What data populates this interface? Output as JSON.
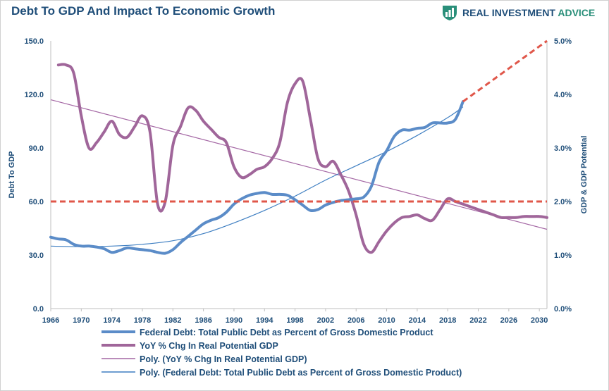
{
  "header": {
    "title": "Debt To GDP And Impact To Economic Growth",
    "brand_part1": "REAL INVESTMENT",
    "brand_part2": "ADVICE"
  },
  "chart_data": {
    "type": "line",
    "title": "Debt To GDP And Impact To Economic Growth",
    "ylabel": "Debt To GDP",
    "y2label": "GDP & GDP Potential",
    "xlim": [
      1966,
      2031
    ],
    "ylim": [
      0,
      150
    ],
    "y2lim": [
      0,
      5.0
    ],
    "x_ticks": [
      "1966",
      "1970",
      "1974",
      "1978",
      "1982",
      "1986",
      "1990",
      "1994",
      "1998",
      "2002",
      "2006",
      "2010",
      "2014",
      "2018",
      "2022",
      "2026",
      "2030"
    ],
    "y_ticks": [
      "0.0",
      "30.0",
      "60.0",
      "90.0",
      "120.0",
      "150.0"
    ],
    "y2_ticks": [
      "0.0%",
      "1.0%",
      "2.0%",
      "3.0%",
      "4.0%",
      "5.0%"
    ],
    "gridlines": false,
    "legend_position": "bottom",
    "legend": [
      "Federal Debt: Total Public Debt as Percent of Gross Domestic Product",
      "YoY % Chg In Real Potential GDP",
      "Poly. (YoY % Chg In Real Potential GDP)",
      "Poly. (Federal Debt: Total Public Debt as Percent of Gross Domestic Product)"
    ],
    "colors": {
      "debt": "#5b8cc8",
      "gdp": "#a0669a",
      "gdp_trend": "#a467a4",
      "debt_trend": "#3f7fc2",
      "dashed": "#e0574a",
      "axis_text": "#1f4e79"
    },
    "series": [
      {
        "name": "Federal Debt: Total Public Debt as Percent of Gross Domestic Product",
        "axis": "left",
        "x": [
          1966,
          1967,
          1968,
          1969,
          1970,
          1971,
          1972,
          1973,
          1974,
          1975,
          1976,
          1977,
          1978,
          1979,
          1980,
          1981,
          1982,
          1983,
          1984,
          1985,
          1986,
          1987,
          1988,
          1989,
          1990,
          1991,
          1992,
          1993,
          1994,
          1995,
          1996,
          1997,
          1998,
          1999,
          2000,
          2001,
          2002,
          2003,
          2004,
          2005,
          2006,
          2007,
          2008,
          2009,
          2010,
          2011,
          2012,
          2013,
          2014,
          2015,
          2016,
          2017,
          2018,
          2019,
          2020
        ],
        "values": [
          40,
          39,
          38.5,
          36,
          35,
          35,
          34.5,
          33.5,
          31.5,
          32.5,
          34,
          33.5,
          33,
          32.5,
          31.5,
          31,
          33,
          37,
          40.5,
          44,
          47.5,
          49.5,
          51,
          54,
          58.5,
          61.5,
          63.5,
          64.5,
          65,
          64,
          64,
          63.5,
          61,
          58,
          55,
          55.5,
          58,
          59.5,
          60.5,
          61,
          61.5,
          62.5,
          68.5,
          82,
          88.5,
          96.5,
          100,
          100,
          101,
          101.5,
          104,
          104,
          104,
          106,
          116
        ]
      },
      {
        "name": "YoY % Chg In Real Potential GDP",
        "axis": "right",
        "x": [
          1967,
          1968,
          1969,
          1970,
          1971,
          1972,
          1973,
          1974,
          1975,
          1976,
          1977,
          1978,
          1979,
          1980,
          1981,
          1982,
          1983,
          1984,
          1985,
          1986,
          1987,
          1988,
          1989,
          1990,
          1991,
          1992,
          1993,
          1994,
          1995,
          1996,
          1997,
          1998,
          1999,
          2000,
          2001,
          2002,
          2003,
          2004,
          2005,
          2006,
          2007,
          2008,
          2009,
          2010,
          2011,
          2012,
          2013,
          2014,
          2015,
          2016,
          2017,
          2018,
          2019,
          2020,
          2021,
          2022,
          2023,
          2024,
          2025,
          2026,
          2027,
          2028,
          2029,
          2030,
          2031
        ],
        "values": [
          4.55,
          4.55,
          4.4,
          3.6,
          3.0,
          3.1,
          3.3,
          3.5,
          3.25,
          3.2,
          3.4,
          3.6,
          3.3,
          1.95,
          2.0,
          3.05,
          3.4,
          3.75,
          3.7,
          3.5,
          3.35,
          3.2,
          3.1,
          2.65,
          2.45,
          2.5,
          2.6,
          2.65,
          2.8,
          3.1,
          3.85,
          4.2,
          4.25,
          3.55,
          2.8,
          2.65,
          2.75,
          2.5,
          2.2,
          1.75,
          1.2,
          1.05,
          1.25,
          1.45,
          1.6,
          1.7,
          1.72,
          1.75,
          1.68,
          1.65,
          1.85,
          2.05,
          2.0,
          1.95,
          1.9,
          1.85,
          1.8,
          1.75,
          1.7,
          1.7,
          1.7,
          1.72,
          1.72,
          1.72,
          1.7
        ]
      },
      {
        "name": "Poly. (YoY % Chg In Real Potential GDP)",
        "axis": "right",
        "x": [
          1966,
          2031
        ],
        "values": [
          3.9,
          1.48
        ]
      },
      {
        "name": "Poly. (Federal Debt: Total Public Debt as Percent of Gross Domestic Product)",
        "axis": "left",
        "x": [
          1966,
          1970,
          1974,
          1978,
          1982,
          1986,
          1990,
          1994,
          1998,
          2002,
          2006,
          2010,
          2014,
          2018,
          2020
        ],
        "values": [
          35,
          34.7,
          35,
          36,
          38,
          42,
          48,
          55,
          63,
          72,
          80,
          88,
          97,
          107,
          113
        ]
      },
      {
        "name": "",
        "axis": "left",
        "x": [
          2020,
          2031
        ],
        "values": [
          116,
          150
        ]
      },
      {
        "name": "",
        "axis": "left",
        "x": [
          1966,
          2031
        ],
        "values": [
          60,
          60
        ]
      }
    ]
  }
}
